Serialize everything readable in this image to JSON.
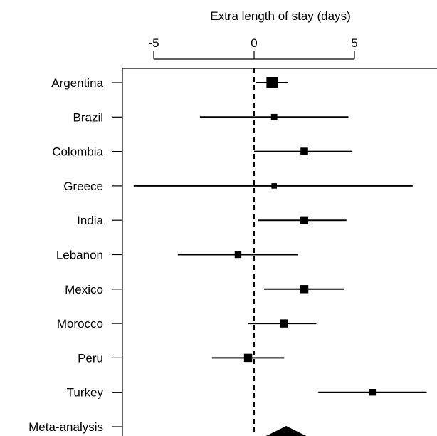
{
  "chart_data": {
    "type": "forest",
    "xlabel": "Extra length of stay (days)",
    "x_ticks": [
      -5,
      0,
      5
    ],
    "xlim": [
      -6.5,
      8.8
    ],
    "reference_line": 0,
    "studies": [
      {
        "label": "Argentina",
        "estimate": 0.9,
        "lower": 0.1,
        "upper": 1.7,
        "weight": 1.0
      },
      {
        "label": "Brazil",
        "estimate": 1.0,
        "lower": -2.7,
        "upper": 4.7,
        "weight": 0.4
      },
      {
        "label": "Colombia",
        "estimate": 2.5,
        "lower": 0.0,
        "upper": 4.9,
        "weight": 0.55
      },
      {
        "label": "Greece",
        "estimate": 1.0,
        "lower": -6.0,
        "upper": 7.9,
        "weight": 0.3
      },
      {
        "label": "India",
        "estimate": 2.5,
        "lower": 0.2,
        "upper": 4.6,
        "weight": 0.6
      },
      {
        "label": "Lebanon",
        "estimate": -0.8,
        "lower": -3.8,
        "upper": 2.2,
        "weight": 0.45
      },
      {
        "label": "Mexico",
        "estimate": 2.5,
        "lower": 0.5,
        "upper": 4.5,
        "weight": 0.62
      },
      {
        "label": "Morocco",
        "estimate": 1.5,
        "lower": -0.3,
        "upper": 3.1,
        "weight": 0.62
      },
      {
        "label": "Peru",
        "estimate": -0.3,
        "lower": -2.1,
        "upper": 1.5,
        "weight": 0.62
      },
      {
        "label": "Turkey",
        "estimate": 5.9,
        "lower": 3.2,
        "upper": 8.6,
        "weight": 0.45
      }
    ],
    "summary": {
      "label": "Meta-analysis",
      "estimate": 1.6,
      "lower": 0.6,
      "upper": 2.6
    }
  }
}
